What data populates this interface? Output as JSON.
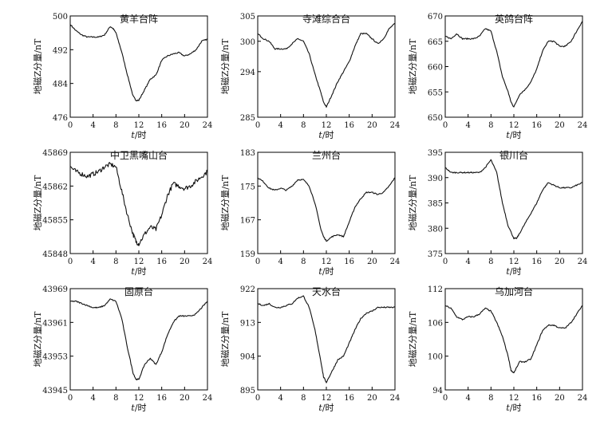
{
  "figure": {
    "ylabel": "地磁Z分量/nT",
    "xlabel_var": "t",
    "xlabel_unit": "/时"
  },
  "chart_data": [
    {
      "type": "line",
      "title": "黄羊台阵",
      "ylabel": "地磁Z分量/nT",
      "xlabel": "t/时",
      "xlim": [
        0,
        24
      ],
      "xticks": [
        0,
        4,
        8,
        12,
        16,
        20,
        24
      ],
      "ylim": [
        476,
        500
      ],
      "yticks": [
        476,
        484,
        492,
        500
      ],
      "x": [
        0,
        1,
        2,
        3,
        4,
        5,
        6,
        7,
        7.5,
        8,
        9,
        10,
        11,
        11.5,
        12,
        13,
        14,
        15,
        16,
        17,
        18,
        19,
        20,
        21,
        22,
        23,
        24
      ],
      "y": [
        498,
        496.5,
        495.5,
        495,
        495,
        495,
        495.5,
        497.5,
        497,
        496,
        491.5,
        486,
        481,
        480,
        480,
        482.5,
        485,
        486,
        489.5,
        490.5,
        491,
        491.3,
        490.5,
        491,
        492,
        494,
        494.5
      ]
    },
    {
      "type": "line",
      "title": "寺滩综合台",
      "ylabel": "地磁Z分量/nT",
      "xlabel": "t/时",
      "xlim": [
        0,
        24
      ],
      "xticks": [
        0,
        4,
        8,
        12,
        16,
        20,
        24
      ],
      "ylim": [
        285,
        305
      ],
      "yticks": [
        285,
        294,
        300,
        305
      ],
      "x": [
        0,
        1,
        2,
        3,
        4,
        5,
        6,
        7,
        8,
        9,
        10,
        11,
        11.5,
        12,
        13,
        14,
        15,
        16,
        17,
        18,
        19,
        20,
        21,
        22,
        23,
        24
      ],
      "y": [
        301.5,
        300.5,
        300,
        298.5,
        298.5,
        298.5,
        299.5,
        300.5,
        300,
        297.5,
        293.5,
        290,
        288,
        287,
        289.5,
        292,
        294,
        296,
        299,
        301.5,
        301.5,
        300.5,
        299.5,
        300.5,
        302.5,
        303.5
      ]
    },
    {
      "type": "line",
      "title": "英鸽台阵",
      "ylabel": "地磁Z分量/nT",
      "xlabel": "t/时",
      "xlim": [
        0,
        24
      ],
      "xticks": [
        0,
        4,
        8,
        12,
        16,
        20,
        24
      ],
      "ylim": [
        650,
        670
      ],
      "yticks": [
        650,
        655,
        660,
        665,
        670
      ],
      "x": [
        0,
        1,
        2,
        3,
        4,
        5,
        6,
        7,
        8,
        9,
        10,
        11,
        11.5,
        12,
        13,
        14,
        15,
        16,
        17,
        18,
        19,
        20,
        21,
        22,
        23,
        24
      ],
      "y": [
        666,
        665.5,
        666.5,
        665.5,
        665.5,
        665.5,
        666,
        667.5,
        667,
        663,
        658,
        655,
        653,
        652,
        654.5,
        655.5,
        657,
        659.5,
        663,
        665,
        665,
        664,
        664,
        665,
        667,
        669
      ]
    },
    {
      "type": "line",
      "title": "中卫黑嘴山台",
      "ylabel": "地磁Z分量/nT",
      "xlabel": "t/时",
      "xlim": [
        0,
        24
      ],
      "xticks": [
        0,
        4,
        8,
        12,
        16,
        20,
        24
      ],
      "ylim": [
        45848,
        45869
      ],
      "yticks": [
        45848,
        45855,
        45862,
        45869
      ],
      "x": [
        0,
        1,
        2,
        3,
        4,
        5,
        6,
        7,
        8,
        9,
        10,
        11,
        11.5,
        12,
        13,
        14,
        15,
        16,
        17,
        18,
        19,
        20,
        21,
        22,
        23,
        24
      ],
      "y": [
        45866,
        45865,
        45864.5,
        45864,
        45864.5,
        45865,
        45866,
        45866.5,
        45866,
        45861,
        45856,
        45852,
        45850.5,
        45850,
        45852,
        45853.5,
        45853,
        45856,
        45860,
        45862.5,
        45862,
        45861.5,
        45862,
        45863,
        45864,
        45865
      ]
    },
    {
      "type": "line",
      "title": "兰州台",
      "ylabel": "地磁Z分量/nT",
      "xlabel": "t/时",
      "xlim": [
        0,
        24
      ],
      "xticks": [
        0,
        4,
        8,
        12,
        16,
        20,
        24
      ],
      "ylim": [
        159,
        183
      ],
      "yticks": [
        159,
        167,
        175,
        183
      ],
      "x": [
        0,
        1,
        2,
        3,
        4,
        5,
        6,
        7,
        8,
        9,
        10,
        11,
        11.5,
        12,
        13,
        14,
        15,
        16,
        17,
        18,
        19,
        20,
        21,
        22,
        23,
        24
      ],
      "y": [
        177,
        176,
        174.5,
        174,
        174.5,
        174,
        175,
        176.5,
        176.5,
        175,
        171,
        165,
        163,
        162,
        163,
        163.5,
        163,
        166.5,
        170,
        172,
        173.5,
        173.5,
        173,
        173.5,
        175,
        177
      ]
    },
    {
      "type": "line",
      "title": "银川台",
      "ylabel": "地磁Z分量/nT",
      "xlabel": "t/时",
      "xlim": [
        0,
        24
      ],
      "xticks": [
        0,
        4,
        8,
        12,
        16,
        20,
        24
      ],
      "ylim": [
        375,
        395
      ],
      "yticks": [
        375,
        380,
        385,
        390,
        395
      ],
      "x": [
        0,
        1,
        2,
        3,
        4,
        5,
        6,
        7,
        8,
        9,
        10,
        11,
        12,
        12.5,
        13,
        14,
        15,
        16,
        17,
        18,
        19,
        20,
        21,
        22,
        23,
        24
      ],
      "y": [
        392,
        391,
        391,
        391,
        391,
        391,
        391,
        392,
        393.5,
        391,
        385,
        380.5,
        378,
        378,
        379,
        381,
        383,
        385,
        387.5,
        389,
        388.5,
        388,
        388,
        388,
        388.5,
        389
      ]
    },
    {
      "type": "line",
      "title": "固原台",
      "ylabel": "地磁Z分量/nT",
      "xlabel": "t/时",
      "xlim": [
        0,
        24
      ],
      "xticks": [
        0,
        4,
        8,
        12,
        16,
        20,
        24
      ],
      "ylim": [
        43945,
        43969
      ],
      "yticks": [
        43945,
        43953,
        43961,
        43969
      ],
      "x": [
        0,
        1,
        2,
        3,
        4,
        5,
        6,
        7,
        8,
        9,
        10,
        11,
        11.5,
        12,
        13,
        14,
        15,
        16,
        17,
        18,
        19,
        20,
        21,
        22,
        23,
        24
      ],
      "y": [
        43966,
        43966,
        43965.5,
        43965,
        43964.5,
        43964.5,
        43965,
        43966.5,
        43966,
        43962,
        43955,
        43949,
        43947.5,
        43947.5,
        43951,
        43952.5,
        43951,
        43954,
        43958,
        43961,
        43962.5,
        43962.5,
        43962.5,
        43963,
        43964.5,
        43966
      ]
    },
    {
      "type": "line",
      "title": "天水台",
      "ylabel": "地磁Z分量/nT",
      "xlabel": "t/时",
      "xlim": [
        0,
        24
      ],
      "xticks": [
        0,
        4,
        8,
        12,
        16,
        20,
        24
      ],
      "ylim": [
        895,
        922
      ],
      "yticks": [
        895,
        904,
        913,
        922
      ],
      "x": [
        0,
        1,
        2,
        3,
        4,
        5,
        6,
        7,
        8,
        9,
        10,
        11,
        11.5,
        12,
        13,
        14,
        15,
        16,
        17,
        18,
        19,
        20,
        21,
        22,
        23,
        24
      ],
      "y": [
        918,
        917.5,
        918,
        917,
        917,
        917.5,
        918,
        919.5,
        920,
        917,
        911,
        903,
        898.5,
        897,
        900,
        903,
        904,
        907.5,
        911,
        914,
        915.5,
        916,
        917,
        917,
        917,
        917
      ]
    },
    {
      "type": "line",
      "title": "乌加河台",
      "ylabel": "地磁Z分量/nT",
      "xlabel": "t/时",
      "xlim": [
        0,
        24
      ],
      "xticks": [
        0,
        4,
        8,
        12,
        16,
        20,
        24
      ],
      "ylim": [
        94,
        112
      ],
      "yticks": [
        94,
        100,
        106,
        112
      ],
      "x": [
        0,
        1,
        2,
        3,
        4,
        5,
        6,
        7,
        8,
        9,
        10,
        11,
        11.5,
        12,
        13,
        14,
        15,
        16,
        17,
        18,
        19,
        20,
        21,
        22,
        23,
        24
      ],
      "y": [
        109,
        108.5,
        107,
        106.5,
        107,
        107,
        107.5,
        108.5,
        108,
        106,
        103.5,
        100,
        97.5,
        97,
        99,
        99,
        99.5,
        102,
        104.5,
        105.5,
        105.5,
        105,
        105,
        106,
        107.5,
        109
      ]
    }
  ]
}
